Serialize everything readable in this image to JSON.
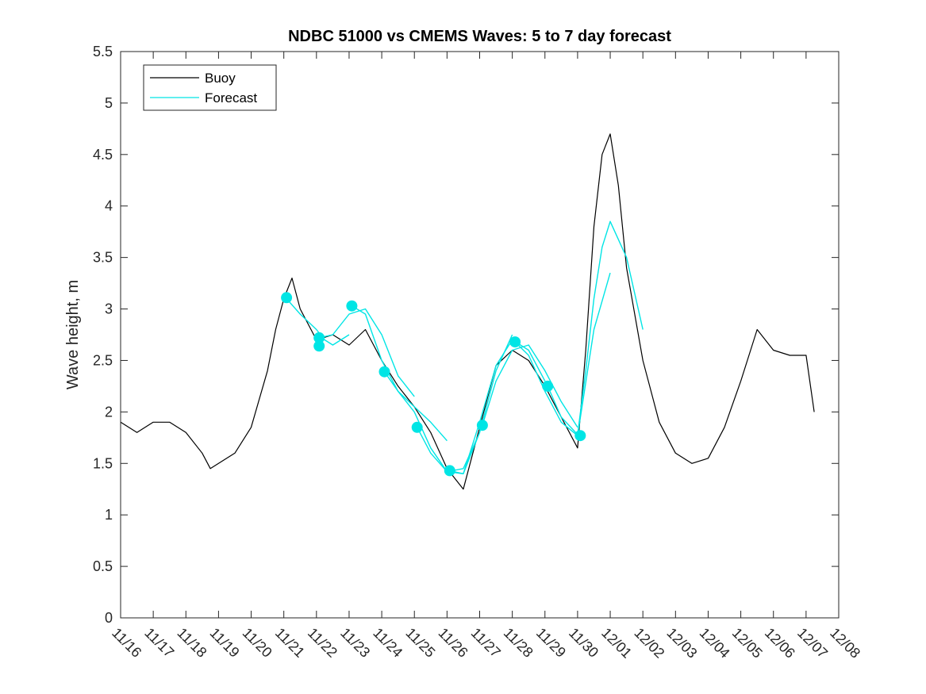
{
  "chart_data": {
    "type": "line",
    "title": "NDBC 51000 vs CMEMS Waves: 5 to 7 day forecast",
    "xlabel": "",
    "ylabel": "Wave height, m",
    "xlim": [
      "2023-11-16",
      "2023-12-08"
    ],
    "ylim": [
      0,
      5.5
    ],
    "x_tick_labels": [
      "11/16",
      "11/17",
      "11/18",
      "11/19",
      "11/20",
      "11/21",
      "11/22",
      "11/23",
      "11/24",
      "11/25",
      "11/26",
      "11/27",
      "11/28",
      "11/29",
      "11/30",
      "12/01",
      "12/02",
      "12/03",
      "12/04",
      "12/05",
      "12/06",
      "12/07",
      "12/08"
    ],
    "y_ticks": [
      0,
      0.5,
      1,
      1.5,
      2,
      2.5,
      3,
      3.5,
      4,
      4.5,
      5,
      5.5
    ],
    "y_tick_labels": [
      "0",
      "0.5",
      "1",
      "1.5",
      "2",
      "2.5",
      "3",
      "3.5",
      "4",
      "4.5",
      "5",
      "5.5"
    ],
    "grid": false,
    "legend_position": "top-left",
    "series": [
      {
        "name": "Buoy",
        "color": "#000000",
        "style": "line",
        "x": [
          "2023-11-16 00:00",
          "2023-11-16 12:00",
          "2023-11-17 00:00",
          "2023-11-17 12:00",
          "2023-11-18 00:00",
          "2023-11-18 12:00",
          "2023-11-18 18:00",
          "2023-11-19 00:00",
          "2023-11-19 12:00",
          "2023-11-20 00:00",
          "2023-11-20 12:00",
          "2023-11-20 18:00",
          "2023-11-21 00:00",
          "2023-11-21 06:00",
          "2023-11-21 12:00",
          "2023-11-22 00:00",
          "2023-11-22 12:00",
          "2023-11-23 00:00",
          "2023-11-23 12:00",
          "2023-11-24 00:00",
          "2023-11-24 12:00",
          "2023-11-25 00:00",
          "2023-11-25 12:00",
          "2023-11-26 00:00",
          "2023-11-26 12:00",
          "2023-11-27 00:00",
          "2023-11-27 12:00",
          "2023-11-28 00:00",
          "2023-11-28 12:00",
          "2023-11-29 00:00",
          "2023-11-29 12:00",
          "2023-11-30 00:00",
          "2023-11-30 06:00",
          "2023-11-30 12:00",
          "2023-11-30 18:00",
          "2023-12-01 00:00",
          "2023-12-01 06:00",
          "2023-12-01 12:00",
          "2023-12-02 00:00",
          "2023-12-02 12:00",
          "2023-12-03 00:00",
          "2023-12-03 12:00",
          "2023-12-04 00:00",
          "2023-12-04 12:00",
          "2023-12-05 00:00",
          "2023-12-05 12:00",
          "2023-12-06 00:00",
          "2023-12-06 12:00",
          "2023-12-07 00:00",
          "2023-12-07 06:00"
        ],
        "y": [
          1.9,
          1.8,
          1.9,
          1.9,
          1.8,
          1.6,
          1.45,
          1.5,
          1.6,
          1.85,
          2.4,
          2.8,
          3.1,
          3.3,
          3.0,
          2.7,
          2.75,
          2.65,
          2.8,
          2.5,
          2.25,
          2.05,
          1.8,
          1.45,
          1.25,
          1.85,
          2.45,
          2.6,
          2.5,
          2.25,
          1.95,
          1.65,
          2.6,
          3.8,
          4.5,
          4.7,
          4.2,
          3.4,
          2.5,
          1.9,
          1.6,
          1.5,
          1.55,
          1.85,
          2.3,
          2.8,
          2.6,
          2.55,
          2.55,
          2.0
        ]
      },
      {
        "name": "Forecast",
        "color": "#00e5e5",
        "style": "line",
        "segments": [
          {
            "x": [
              "2023-11-21 02:00",
              "2023-11-21 12:00",
              "2023-11-22 00:00",
              "2023-11-22 06:00",
              "2023-11-22 12:00",
              "2023-11-23 00:00"
            ],
            "y": [
              3.1,
              2.95,
              2.8,
              2.7,
              2.65,
              2.75
            ]
          },
          {
            "x": [
              "2023-11-22 02:00",
              "2023-11-22 12:00",
              "2023-11-23 00:00",
              "2023-11-23 12:00",
              "2023-11-24 00:00",
              "2023-11-24 12:00",
              "2023-11-25 00:00"
            ],
            "y": [
              2.72,
              2.75,
              2.95,
              3.0,
              2.75,
              2.35,
              2.15
            ]
          },
          {
            "x": [
              "2023-11-23 02:00",
              "2023-11-23 12:00",
              "2023-11-24 00:00",
              "2023-11-24 12:00",
              "2023-11-25 00:00",
              "2023-11-25 12:00",
              "2023-11-26 00:00"
            ],
            "y": [
              3.03,
              2.95,
              2.5,
              2.2,
              2.05,
              1.9,
              1.72
            ]
          },
          {
            "x": [
              "2023-11-24 02:00",
              "2023-11-24 12:00",
              "2023-11-25 00:00",
              "2023-11-25 12:00",
              "2023-11-26 00:00",
              "2023-11-26 12:00",
              "2023-11-27 00:00"
            ],
            "y": [
              2.39,
              2.2,
              2.0,
              1.65,
              1.42,
              1.45,
              1.8
            ]
          },
          {
            "x": [
              "2023-11-25 02:00",
              "2023-11-25 12:00",
              "2023-11-26 00:00",
              "2023-11-26 12:00",
              "2023-11-27 00:00",
              "2023-11-27 12:00",
              "2023-11-28 00:00"
            ],
            "y": [
              1.85,
              1.6,
              1.42,
              1.4,
              1.8,
              2.4,
              2.75
            ]
          },
          {
            "x": [
              "2023-11-26 02:00",
              "2023-11-26 12:00",
              "2023-11-27 00:00",
              "2023-11-27 12:00",
              "2023-11-28 00:00",
              "2023-11-28 12:00",
              "2023-11-29 00:00"
            ],
            "y": [
              1.43,
              1.4,
              1.9,
              2.45,
              2.7,
              2.6,
              2.3
            ]
          },
          {
            "x": [
              "2023-11-27 02:00",
              "2023-11-27 12:00",
              "2023-11-28 00:00",
              "2023-11-28 12:00",
              "2023-11-29 00:00",
              "2023-11-29 12:00",
              "2023-11-30 00:00"
            ],
            "y": [
              1.87,
              2.3,
              2.6,
              2.65,
              2.4,
              2.1,
              1.85
            ]
          },
          {
            "x": [
              "2023-11-28 02:00",
              "2023-11-28 12:00",
              "2023-11-29 00:00",
              "2023-11-29 12:00",
              "2023-11-30 00:00",
              "2023-11-30 12:00",
              "2023-12-01 00:00"
            ],
            "y": [
              2.68,
              2.55,
              2.2,
              1.9,
              1.77,
              2.8,
              3.35
            ]
          },
          {
            "x": [
              "2023-11-29 02:00",
              "2023-11-29 12:00",
              "2023-11-30 00:00",
              "2023-11-30 06:00",
              "2023-11-30 12:00",
              "2023-11-30 18:00",
              "2023-12-01 00:00",
              "2023-12-01 12:00",
              "2023-12-02 00:00"
            ],
            "y": [
              2.25,
              1.95,
              1.78,
              2.4,
              3.1,
              3.6,
              3.85,
              3.5,
              2.8
            ]
          }
        ]
      }
    ],
    "markers": {
      "color": "#00e5e5",
      "x": [
        "2023-11-21 02:00",
        "2023-11-22 02:00",
        "2023-11-22 02:00",
        "2023-11-23 02:00",
        "2023-11-24 02:00",
        "2023-11-25 02:00",
        "2023-11-26 02:00",
        "2023-11-27 02:00",
        "2023-11-28 02:00",
        "2023-11-29 02:00",
        "2023-11-30 02:00"
      ],
      "y": [
        3.11,
        2.72,
        2.64,
        3.03,
        2.39,
        1.85,
        1.43,
        1.87,
        2.68,
        2.25,
        1.77
      ]
    }
  }
}
